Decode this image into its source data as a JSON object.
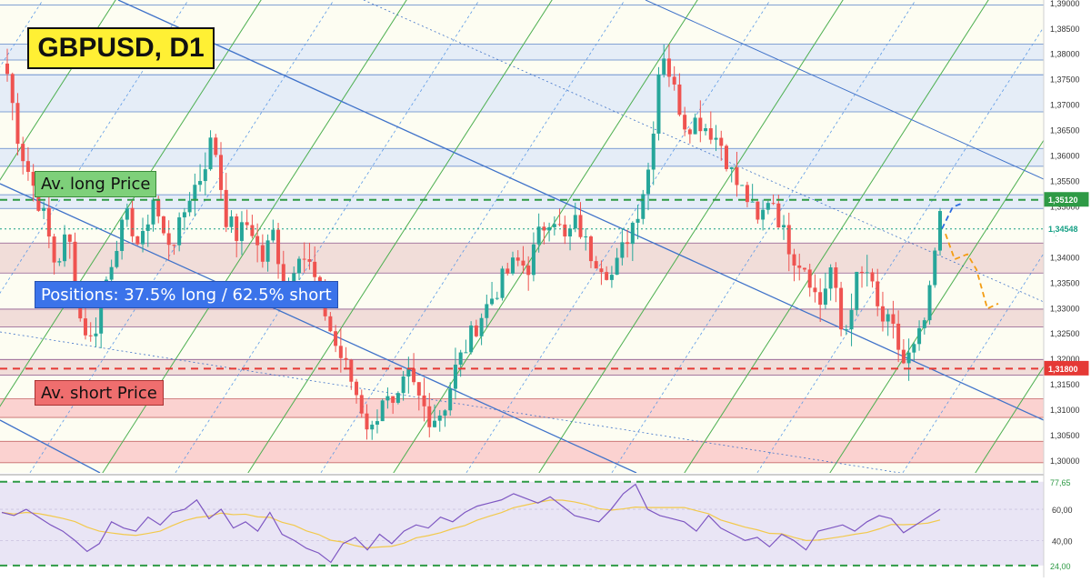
{
  "chart_data": {
    "type": "candlestick",
    "title": "GBPUSD, D1",
    "price_axis": {
      "ylim": [
        1.2975,
        1.3905
      ],
      "ticks": [
        "1,39000",
        "1,38500",
        "1,38000",
        "1,37500",
        "1,37000",
        "1,36500",
        "1,36000",
        "1,35500",
        "1,35000",
        "1,34500",
        "1,34000",
        "1,33500",
        "1,33000",
        "1,32500",
        "1,32000",
        "1,31500",
        "1,31000",
        "1,30500",
        "1,30000"
      ],
      "tick_values": [
        1.39,
        1.385,
        1.38,
        1.375,
        1.37,
        1.365,
        1.36,
        1.355,
        1.35,
        1.345,
        1.34,
        1.335,
        1.33,
        1.325,
        1.32,
        1.315,
        1.31,
        1.305,
        1.3
      ]
    },
    "markers": [
      {
        "label": "1,35120",
        "value": 1.3512,
        "color": "#2e9a45",
        "style": "dashed"
      },
      {
        "label": "1,34548",
        "value": 1.34548,
        "color": "#16a085",
        "style": "dotted"
      },
      {
        "label": "1,31800",
        "value": 1.318,
        "color": "#e53935",
        "style": "dashed"
      }
    ],
    "annotations": {
      "avg_long": "Av. long Price",
      "avg_short": "Av. short Price",
      "positions": "Positions: 37.5% long / 62.5% short"
    },
    "zones": [
      {
        "from": 1.3787,
        "to": 1.3818,
        "kind": "resistance"
      },
      {
        "from": 1.3685,
        "to": 1.3758,
        "kind": "resistance"
      },
      {
        "from": 1.3578,
        "to": 1.3613,
        "kind": "resistance"
      },
      {
        "from": 1.3495,
        "to": 1.3522,
        "kind": "resistance"
      },
      {
        "from": 1.3368,
        "to": 1.3427,
        "kind": "supply"
      },
      {
        "from": 1.3262,
        "to": 1.3297,
        "kind": "supply"
      },
      {
        "from": 1.3167,
        "to": 1.3198,
        "kind": "supply"
      },
      {
        "from": 1.3084,
        "to": 1.3121,
        "kind": "demand"
      },
      {
        "from": 1.2995,
        "to": 1.3037,
        "kind": "demand"
      }
    ],
    "close_path": [
      1.376,
      1.362,
      1.355,
      1.348,
      1.338,
      1.345,
      1.328,
      1.323,
      1.334,
      1.343,
      1.348,
      1.341,
      1.352,
      1.343,
      1.344,
      1.352,
      1.356,
      1.364,
      1.348,
      1.344,
      1.347,
      1.339,
      1.345,
      1.332,
      1.342,
      1.338,
      1.331,
      1.323,
      1.318,
      1.312,
      1.305,
      1.313,
      1.309,
      1.317,
      1.312,
      1.308,
      1.31,
      1.318,
      1.323,
      1.328,
      1.332,
      1.336,
      1.339,
      1.338,
      1.345,
      1.349,
      1.343,
      1.347,
      1.341,
      1.339,
      1.336,
      1.343,
      1.349,
      1.358,
      1.382,
      1.373,
      1.366,
      1.367,
      1.365,
      1.362,
      1.355,
      1.352,
      1.346,
      1.353,
      1.345,
      1.34,
      1.338,
      1.33,
      1.338,
      1.323,
      1.335,
      1.337,
      1.328,
      1.326,
      1.319,
      1.322,
      1.3295,
      1.349
    ],
    "forecast": {
      "blue": [
        1.3455,
        1.3498,
        1.3505
      ],
      "orange": [
        1.3445,
        1.3395,
        1.3405,
        1.3375,
        1.3298,
        1.3308
      ]
    },
    "rsi": {
      "lines": [
        {
          "label": "77,65",
          "value": 77.65
        },
        {
          "label": "24,00",
          "value": 24.0
        }
      ],
      "ticks": [
        "60,00",
        "40,00"
      ],
      "tick_values": [
        60,
        40
      ],
      "ylim": [
        21,
        81
      ],
      "values": [
        58,
        56,
        60,
        55,
        50,
        46,
        40,
        33,
        38,
        52,
        48,
        46,
        55,
        50,
        58,
        60,
        66,
        54,
        60,
        48,
        52,
        46,
        58,
        44,
        40,
        35,
        32,
        26,
        38,
        42,
        34,
        44,
        38,
        46,
        50,
        48,
        55,
        52,
        58,
        62,
        64,
        66,
        70,
        67,
        64,
        68,
        62,
        56,
        54,
        52,
        60,
        70,
        76,
        60,
        56,
        54,
        52,
        46,
        56,
        48,
        44,
        40,
        42,
        36,
        44,
        40,
        34,
        46,
        48,
        50,
        46,
        52,
        56,
        54,
        45,
        50,
        55,
        60
      ]
    }
  }
}
